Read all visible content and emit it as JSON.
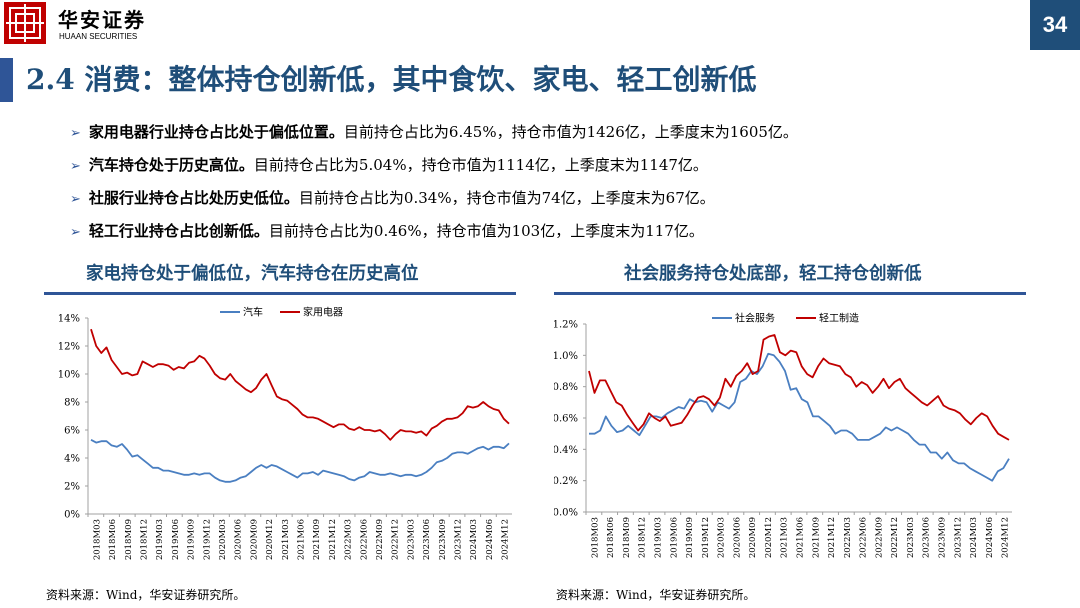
{
  "header": {
    "brand_cn": "华安证券",
    "brand_en": "HUAAN SECURITIES",
    "page_number": "34"
  },
  "title": "2.4 消费：整体持仓创新低，其中食饮、家电、轻工创新低",
  "bullets": [
    {
      "bold": "家用电器行业持仓占比处于偏低位置。",
      "text": "目前持仓占比为6.45%，持仓市值为1426亿，上季度末为1605亿。"
    },
    {
      "bold": "汽车持仓处于历史高位。",
      "text": "目前持仓占比为5.04%，持仓市值为1114亿，上季度末为1147亿。"
    },
    {
      "bold": "社服行业持仓占比处历史低位。",
      "text": "目前持仓占比为0.34%，持仓市值为74亿，上季度末为67亿。"
    },
    {
      "bold": "轻工行业持仓占比创新低。",
      "text": "目前持仓占比为0.46%，持仓市值为103亿，上季度末为117亿。"
    }
  ],
  "colors": {
    "brand_red": "#c00000",
    "brand_blue": "#1f4e79",
    "series_blue": "#4a7fc1",
    "series_red": "#c00000"
  },
  "chart_data": [
    {
      "type": "line",
      "title": "家电持仓处于偏低位，汽车持仓在历史高位",
      "source": "资料来源：Wind，华安证券研究所。",
      "x_tick_labels": [
        "2018M03",
        "2018M06",
        "2018M09",
        "2018M12",
        "2019M03",
        "2019M06",
        "2019M09",
        "2019M12",
        "2020M03",
        "2020M06",
        "2020M09",
        "2020M12",
        "2021M03",
        "2021M06",
        "2021M09",
        "2021M12",
        "2022M03",
        "2022M06",
        "2022M09",
        "2022M12",
        "2023M03",
        "2023M06",
        "2023M09",
        "2023M12",
        "2024M03",
        "2024M06",
        "2024M12"
      ],
      "y_tick_labels": [
        "0%",
        "2%",
        "4%",
        "6%",
        "8%",
        "10%",
        "12%",
        "14%"
      ],
      "ylim": [
        0,
        14
      ],
      "legend_position": "top",
      "series": [
        {
          "name": "汽车",
          "color": "#4a7fc1",
          "values": [
            5.3,
            5.1,
            5.2,
            5.2,
            4.9,
            4.8,
            5.0,
            4.6,
            4.1,
            4.2,
            3.9,
            3.6,
            3.3,
            3.3,
            3.1,
            3.1,
            3.0,
            2.9,
            2.8,
            2.8,
            2.9,
            2.8,
            2.9,
            2.9,
            2.6,
            2.4,
            2.3,
            2.3,
            2.4,
            2.6,
            2.7,
            3.0,
            3.3,
            3.5,
            3.3,
            3.5,
            3.4,
            3.2,
            3.0,
            2.8,
            2.6,
            2.9,
            2.9,
            3.0,
            2.8,
            3.1,
            3.0,
            2.9,
            2.8,
            2.7,
            2.5,
            2.4,
            2.6,
            2.7,
            3.0,
            2.9,
            2.8,
            2.8,
            2.9,
            2.8,
            2.7,
            2.8,
            2.8,
            2.7,
            2.8,
            3.0,
            3.3,
            3.7,
            3.8,
            4.0,
            4.3,
            4.4,
            4.4,
            4.3,
            4.5,
            4.7,
            4.8,
            4.6,
            4.8,
            4.8,
            4.7,
            5.04
          ]
        },
        {
          "name": "家用电器",
          "color": "#c00000",
          "values": [
            13.2,
            12.0,
            11.5,
            11.9,
            11.0,
            10.5,
            10.0,
            10.1,
            9.9,
            10.0,
            10.9,
            10.7,
            10.5,
            10.7,
            10.7,
            10.6,
            10.3,
            10.5,
            10.4,
            10.8,
            10.9,
            11.3,
            11.1,
            10.6,
            10.0,
            9.7,
            9.6,
            10.0,
            9.5,
            9.2,
            8.9,
            8.7,
            9.0,
            9.6,
            10.0,
            9.2,
            8.4,
            8.2,
            8.1,
            7.8,
            7.5,
            7.1,
            6.9,
            6.9,
            6.8,
            6.6,
            6.4,
            6.2,
            6.4,
            6.4,
            6.1,
            6.0,
            6.2,
            6.0,
            6.0,
            5.9,
            6.0,
            5.7,
            5.3,
            5.7,
            6.0,
            5.9,
            5.9,
            5.8,
            5.9,
            5.6,
            6.1,
            6.3,
            6.6,
            6.8,
            6.8,
            6.9,
            7.2,
            7.7,
            7.6,
            7.7,
            8.0,
            7.7,
            7.5,
            7.4,
            6.8,
            6.45
          ]
        }
      ]
    },
    {
      "type": "line",
      "title": "社会服务持仓处底部，轻工持仓创新低",
      "source": "资料来源：Wind，华安证券研究所。",
      "x_tick_labels": [
        "2018M03",
        "2018M06",
        "2018M09",
        "2018M12",
        "2019M03",
        "2019M06",
        "2019M09",
        "2019M12",
        "2020M03",
        "2020M06",
        "2020M09",
        "2020M12",
        "2021M03",
        "2021M06",
        "2021M09",
        "2021M12",
        "2022M03",
        "2022M06",
        "2022M09",
        "2022M12",
        "2023M03",
        "2023M06",
        "2023M09",
        "2023M12",
        "2024M03",
        "2024M06",
        "2024M12"
      ],
      "y_tick_labels": [
        "0.0%",
        "0.2%",
        "0.4%",
        "0.6%",
        "0.8%",
        "1.0%",
        "1.2%"
      ],
      "ylim": [
        0,
        1.2
      ],
      "legend_position": "top",
      "series": [
        {
          "name": "社会服务",
          "color": "#4a7fc1",
          "values": [
            0.5,
            0.5,
            0.52,
            0.61,
            0.55,
            0.51,
            0.52,
            0.55,
            0.52,
            0.49,
            0.55,
            0.61,
            0.61,
            0.6,
            0.63,
            0.65,
            0.67,
            0.66,
            0.72,
            0.7,
            0.71,
            0.7,
            0.64,
            0.7,
            0.68,
            0.66,
            0.7,
            0.83,
            0.85,
            0.9,
            0.88,
            0.93,
            1.01,
            1.0,
            0.96,
            0.9,
            0.78,
            0.79,
            0.72,
            0.7,
            0.61,
            0.61,
            0.58,
            0.55,
            0.5,
            0.52,
            0.52,
            0.5,
            0.46,
            0.46,
            0.46,
            0.48,
            0.5,
            0.54,
            0.52,
            0.54,
            0.52,
            0.5,
            0.46,
            0.43,
            0.43,
            0.38,
            0.38,
            0.34,
            0.38,
            0.33,
            0.31,
            0.31,
            0.28,
            0.26,
            0.24,
            0.22,
            0.2,
            0.26,
            0.28,
            0.34
          ]
        },
        {
          "name": "轻工制造",
          "color": "#c00000",
          "values": [
            0.9,
            0.76,
            0.84,
            0.84,
            0.77,
            0.7,
            0.68,
            0.62,
            0.57,
            0.52,
            0.56,
            0.63,
            0.6,
            0.58,
            0.61,
            0.55,
            0.56,
            0.57,
            0.62,
            0.68,
            0.73,
            0.74,
            0.72,
            0.68,
            0.73,
            0.85,
            0.8,
            0.87,
            0.9,
            0.95,
            0.88,
            0.9,
            1.1,
            1.12,
            1.13,
            1.02,
            1.0,
            1.03,
            1.02,
            0.93,
            0.88,
            0.86,
            0.93,
            0.98,
            0.95,
            0.94,
            0.93,
            0.88,
            0.86,
            0.8,
            0.83,
            0.81,
            0.76,
            0.8,
            0.85,
            0.79,
            0.83,
            0.85,
            0.79,
            0.76,
            0.73,
            0.7,
            0.68,
            0.71,
            0.74,
            0.68,
            0.66,
            0.65,
            0.63,
            0.59,
            0.56,
            0.6,
            0.63,
            0.61,
            0.55,
            0.5,
            0.48,
            0.46
          ]
        }
      ]
    }
  ]
}
